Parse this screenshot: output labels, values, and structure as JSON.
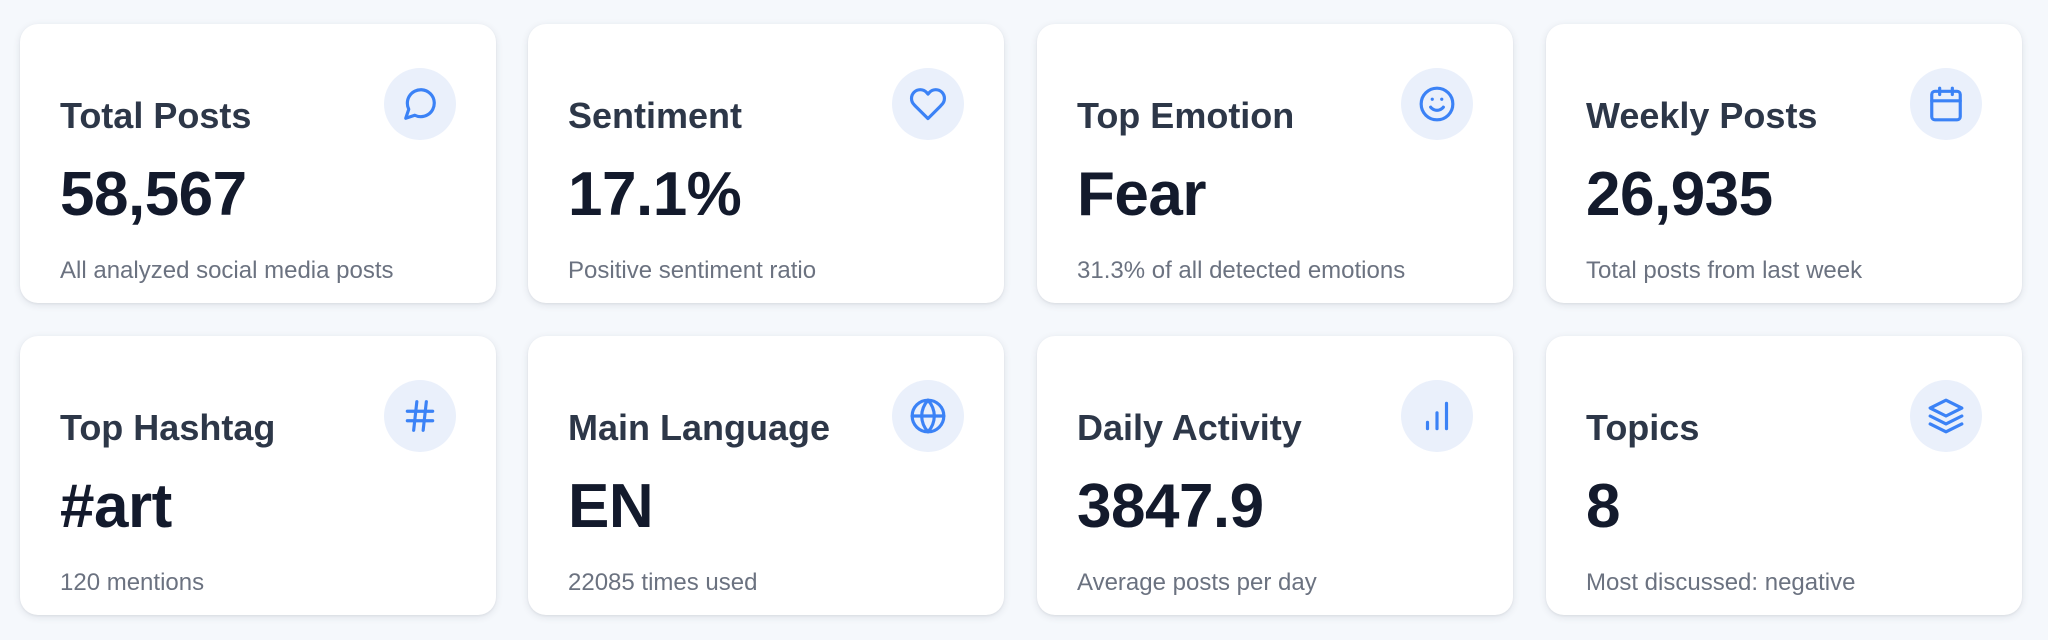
{
  "accent_color": "#3b82f6",
  "cards": [
    {
      "title": "Total Posts",
      "value": "58,567",
      "subtitle": "All analyzed social media posts",
      "icon": "message-circle-icon"
    },
    {
      "title": "Sentiment",
      "value": "17.1%",
      "subtitle": "Positive sentiment ratio",
      "icon": "heart-icon"
    },
    {
      "title": "Top Emotion",
      "value": "Fear",
      "subtitle": "31.3% of all detected emotions",
      "icon": "smile-icon"
    },
    {
      "title": "Weekly Posts",
      "value": "26,935",
      "subtitle": "Total posts from last week",
      "icon": "calendar-icon"
    },
    {
      "title": "Top Hashtag",
      "value": "#art",
      "subtitle": "120 mentions",
      "icon": "hash-icon"
    },
    {
      "title": "Main Language",
      "value": "EN",
      "subtitle": "22085 times used",
      "icon": "globe-icon"
    },
    {
      "title": "Daily Activity",
      "value": "3847.9",
      "subtitle": "Average posts per day",
      "icon": "bar-chart-icon"
    },
    {
      "title": "Topics",
      "value": "8",
      "subtitle": "Most discussed: negative",
      "icon": "layers-icon"
    }
  ]
}
